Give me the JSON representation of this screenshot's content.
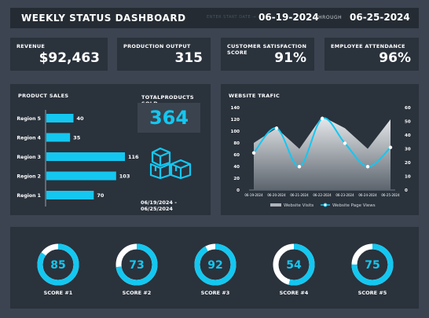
{
  "header": {
    "title": "WEEKLY STATUS DASHBOARD",
    "start_label": "ENTER START DATE →",
    "start_date": "06-19-2024",
    "through_label": "THROUGH",
    "end_date": "06-25-2024"
  },
  "kpis": [
    {
      "label": "REVENUE",
      "value": "$92,463"
    },
    {
      "label": "PRODUCTION OUTPUT",
      "value": "315"
    },
    {
      "label": "CUSTOMER SATISFACTION SCORE",
      "value": "91%"
    },
    {
      "label": "EMPLOYEE ATTENDANCE",
      "value": "96%"
    }
  ],
  "product_sales": {
    "title": "PRODUCT SALES",
    "total_label": "TOTALPRODUCTS SOLD",
    "total_value": "364",
    "date_range": "06/19/2024 - 06/25/2024",
    "icon": "boxes-icon"
  },
  "website": {
    "title": "WEBSITE TRAFIC",
    "legend_visits": "Website Visits",
    "legend_views": "Website Page Views"
  },
  "chart_data": [
    {
      "type": "bar",
      "orientation": "horizontal",
      "categories": [
        "Region 5",
        "Region 4",
        "Region 3",
        "Region 2",
        "Region 1"
      ],
      "values": [
        40,
        35,
        116,
        103,
        70
      ],
      "color": "#14c7f0"
    },
    {
      "type": "area+line",
      "x": [
        "06-19-2024",
        "06-20-2024",
        "06-21-2024",
        "06-22-2024",
        "06-23-2024",
        "06-24-2024",
        "06-25-2024"
      ],
      "left_axis": {
        "ticks": [
          "0",
          "20",
          "40",
          "60",
          "80",
          "100",
          "120",
          "140"
        ],
        "ylim": [
          0,
          140
        ]
      },
      "right_axis": {
        "ticks": [
          "0",
          "10",
          "20",
          "30",
          "40",
          "50",
          "60"
        ],
        "ylim": [
          0,
          60
        ]
      },
      "series": [
        {
          "name": "Website Visits",
          "type": "area",
          "axis": "left",
          "values": [
            80,
            105,
            70,
            125,
            105,
            70,
            120
          ]
        },
        {
          "name": "Website Page Views",
          "type": "line",
          "axis": "right",
          "values": [
            27,
            45,
            17,
            52,
            34,
            17,
            31
          ],
          "color": "#14c7f0"
        }
      ]
    }
  ],
  "scores": [
    {
      "label": "SCORE #1",
      "value": "85",
      "pct": 0.85
    },
    {
      "label": "SCORE #2",
      "value": "73",
      "pct": 0.73
    },
    {
      "label": "SCORE #3",
      "value": "92",
      "pct": 0.92
    },
    {
      "label": "SCORE #4",
      "value": "54",
      "pct": 0.54
    },
    {
      "label": "SCORE #5",
      "value": "75",
      "pct": 0.75
    }
  ],
  "colors": {
    "accent": "#14c7f0",
    "panel": "#2a323c",
    "background": "#3b4450"
  }
}
